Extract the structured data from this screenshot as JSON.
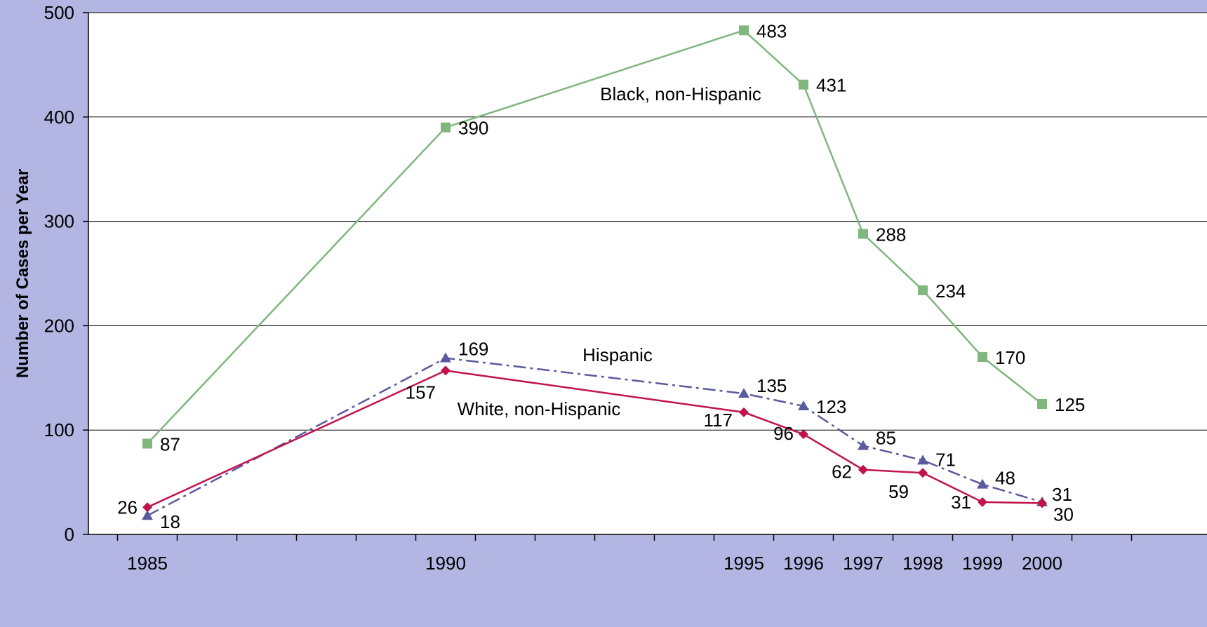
{
  "chart_data": {
    "type": "line",
    "title": "",
    "xlabel": "",
    "ylabel": "Number of Cases per Year",
    "ylim": [
      0,
      500
    ],
    "yticks": [
      0,
      100,
      200,
      300,
      400,
      500
    ],
    "xlim": [
      1984,
      2001
    ],
    "xticks": [
      1985,
      1990,
      1995,
      1996,
      1997,
      1998,
      1999,
      2000
    ],
    "grid": true,
    "colors": {
      "background": "#b3b6e2",
      "plot_area": "#ffffff",
      "gridline": "#000000"
    },
    "series": [
      {
        "name": "Black, non-Hispanic",
        "color": "#7fb77e",
        "marker": "square",
        "line_style": "solid",
        "x": [
          1985,
          1990,
          1995,
          1996,
          1997,
          1998,
          1999,
          2000
        ],
        "values": [
          87,
          390,
          483,
          431,
          288,
          234,
          170,
          125
        ]
      },
      {
        "name": "Hispanic",
        "color": "#5a5a9e",
        "marker": "triangle",
        "line_style": "dash-dot",
        "x": [
          1985,
          1990,
          1995,
          1996,
          1997,
          1998,
          1999,
          2000
        ],
        "values": [
          18,
          169,
          135,
          123,
          85,
          71,
          48,
          31
        ]
      },
      {
        "name": "White, non-Hispanic",
        "color": "#c0144b",
        "marker": "diamond",
        "line_style": "solid",
        "x": [
          1985,
          1990,
          1995,
          1996,
          1997,
          1998,
          1999,
          2000
        ],
        "values": [
          26,
          157,
          117,
          96,
          62,
          59,
          31,
          30
        ]
      }
    ]
  }
}
